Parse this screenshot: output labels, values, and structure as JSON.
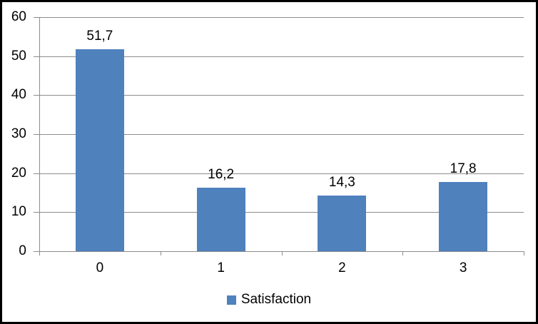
{
  "chart_data": {
    "type": "bar",
    "title": "",
    "categories": [
      "0",
      "1",
      "2",
      "3"
    ],
    "values": [
      51.7,
      16.2,
      14.3,
      17.8
    ],
    "value_labels": [
      "51,7",
      "16,2",
      "14,3",
      "17,8"
    ],
    "series_name": "Satisfaction",
    "y_ticks": [
      {
        "value": 0,
        "label": "0"
      },
      {
        "value": 10,
        "label": "10"
      },
      {
        "value": 20,
        "label": "20"
      },
      {
        "value": 30,
        "label": "30"
      },
      {
        "value": 40,
        "label": "40"
      },
      {
        "value": 50,
        "label": "50"
      },
      {
        "value": 60,
        "label": "60"
      }
    ],
    "ylim": [
      0,
      60
    ],
    "grid": "horizontal",
    "legend_position": "bottom",
    "legend": [
      {
        "label": "Satisfaction",
        "color": "#4F81BD"
      }
    ],
    "colors": {
      "bar": "#4F81BD",
      "axis": "#8C8C8C",
      "gridline": "#8C8C8C",
      "text": "#000000",
      "frame_border": "#000000",
      "background": "#FFFFFF"
    }
  }
}
